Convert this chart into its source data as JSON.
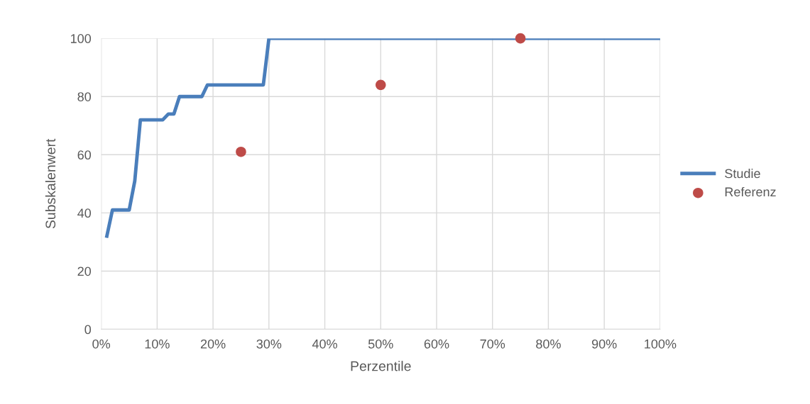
{
  "chart_data": {
    "type": "line",
    "xlabel": "Perzentile",
    "ylabel": "Subskalenwert",
    "xlim": [
      0,
      100
    ],
    "ylim": [
      0,
      100
    ],
    "xticks": [
      {
        "value": 0,
        "label": "0%"
      },
      {
        "value": 10,
        "label": "10%"
      },
      {
        "value": 20,
        "label": "20%"
      },
      {
        "value": 30,
        "label": "30%"
      },
      {
        "value": 40,
        "label": "40%"
      },
      {
        "value": 50,
        "label": "50%"
      },
      {
        "value": 60,
        "label": "60%"
      },
      {
        "value": 70,
        "label": "70%"
      },
      {
        "value": 80,
        "label": "80%"
      },
      {
        "value": 90,
        "label": "90%"
      },
      {
        "value": 100,
        "label": "100%"
      }
    ],
    "yticks": [
      0,
      20,
      40,
      60,
      80,
      100
    ],
    "grid": true,
    "legend": "right",
    "series": [
      {
        "name": "Studie",
        "color": "#4a7ebb",
        "x": [
          1,
          2,
          5,
          6,
          7,
          11,
          12,
          13,
          14,
          18,
          19,
          29,
          30,
          100
        ],
        "values": [
          32,
          41,
          41,
          51,
          72,
          72,
          74,
          74,
          80,
          80,
          84,
          84,
          100,
          100
        ]
      },
      {
        "name": "Referenz",
        "type": "scatter",
        "color": "#be4b48",
        "x": [
          25,
          50,
          75
        ],
        "values": [
          61,
          84,
          100
        ]
      }
    ]
  }
}
